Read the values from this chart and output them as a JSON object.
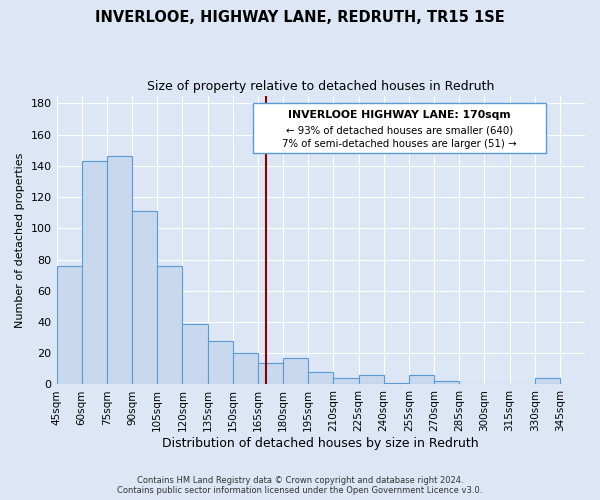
{
  "title": "INVERLOOE, HIGHWAY LANE, REDRUTH, TR15 1SE",
  "subtitle": "Size of property relative to detached houses in Redruth",
  "xlabel": "Distribution of detached houses by size in Redruth",
  "ylabel": "Number of detached properties",
  "bin_labels": [
    "45sqm",
    "60sqm",
    "75sqm",
    "90sqm",
    "105sqm",
    "120sqm",
    "135sqm",
    "150sqm",
    "165sqm",
    "180sqm",
    "195sqm",
    "210sqm",
    "225sqm",
    "240sqm",
    "255sqm",
    "270sqm",
    "285sqm",
    "300sqm",
    "315sqm",
    "330sqm",
    "345sqm"
  ],
  "bin_edges": [
    45,
    60,
    75,
    90,
    105,
    120,
    135,
    150,
    165,
    180,
    195,
    210,
    225,
    240,
    255,
    270,
    285,
    300,
    315,
    330,
    345
  ],
  "counts": [
    76,
    143,
    146,
    111,
    76,
    39,
    28,
    20,
    14,
    17,
    8,
    4,
    6,
    1,
    6,
    2,
    0,
    0,
    0,
    4
  ],
  "bar_color": "#c8d9ee",
  "bar_edge_color": "#5b9bd5",
  "vline_x": 170,
  "vline_color": "#8b0000",
  "annotation_title": "INVERLOOE HIGHWAY LANE: 170sqm",
  "annotation_line1": "← 93% of detached houses are smaller (640)",
  "annotation_line2": "7% of semi-detached houses are larger (51) →",
  "annotation_box_facecolor": "#ffffff",
  "annotation_box_edgecolor": "#5b9bd5",
  "background_color": "#dce6f5",
  "plot_bg_color": "#dce6f5",
  "ylim": [
    0,
    185
  ],
  "yticks": [
    0,
    20,
    40,
    60,
    80,
    100,
    120,
    140,
    160,
    180
  ],
  "footer_line1": "Contains HM Land Registry data © Crown copyright and database right 2024.",
  "footer_line2": "Contains public sector information licensed under the Open Government Licence v3.0."
}
